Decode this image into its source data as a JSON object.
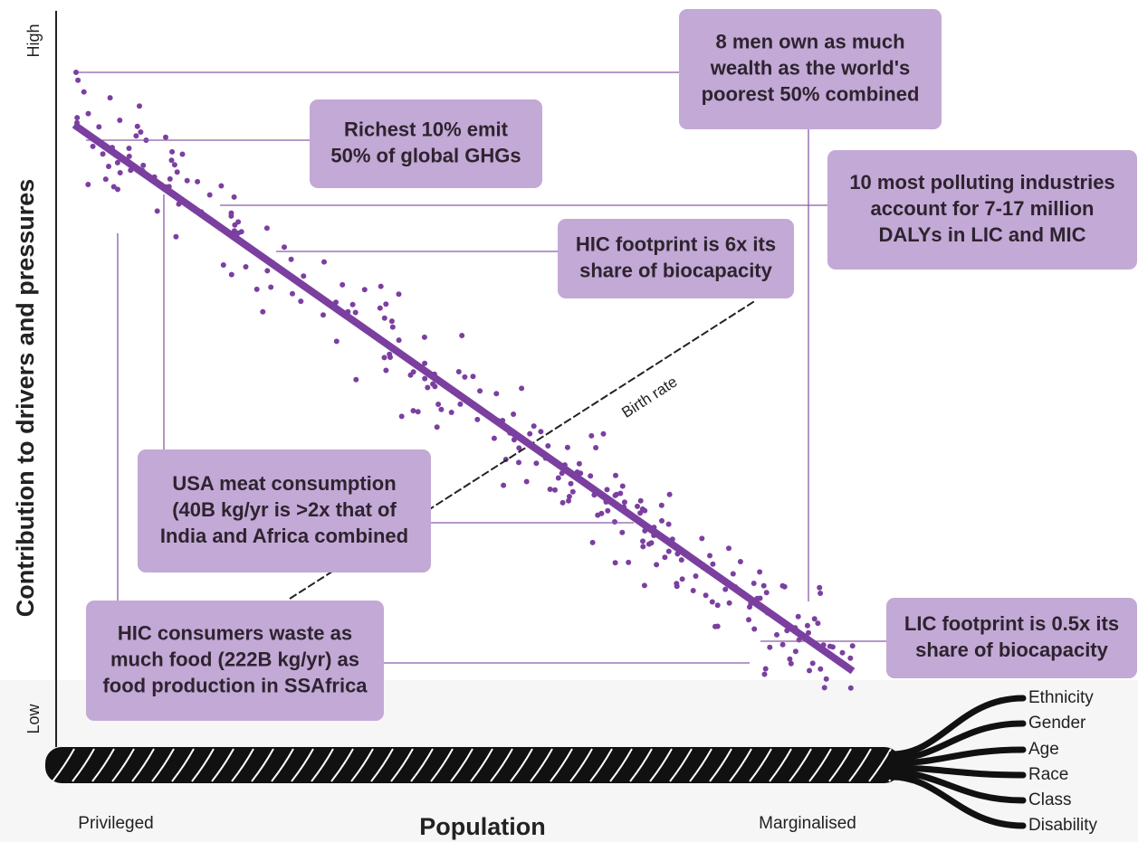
{
  "y_axis": {
    "title": "Contribution to drivers and pressures",
    "high": "High",
    "low": "Low"
  },
  "x_axis": {
    "title": "Population",
    "left": "Privileged",
    "right": "Marginalised"
  },
  "trend_label": "Birth rate",
  "callouts": [
    {
      "lines": [
        "8 men own as much",
        "wealth as the world's",
        "poorest 50% combined"
      ]
    },
    {
      "lines": [
        "Richest 10% emit",
        "50% of global GHGs"
      ]
    },
    {
      "lines": [
        "10 most polluting industries",
        "account for 7-17 million",
        "DALYs in LIC and MIC"
      ]
    },
    {
      "lines": [
        "HIC footprint is 6x its",
        "share of biocapacity"
      ]
    },
    {
      "lines": [
        "USA meat consumption",
        "(40B kg/yr is >2x that of",
        "India and Africa combined"
      ]
    },
    {
      "lines": [
        "HIC consumers waste as",
        "much food (222B kg/yr) as",
        "food production in SSAfrica"
      ]
    },
    {
      "lines": [
        "LIC footprint is 0.5x its",
        "share of biocapacity"
      ]
    }
  ],
  "strands": [
    "Ethnicity",
    "Gender",
    "Age",
    "Race",
    "Class",
    "Disability"
  ]
}
